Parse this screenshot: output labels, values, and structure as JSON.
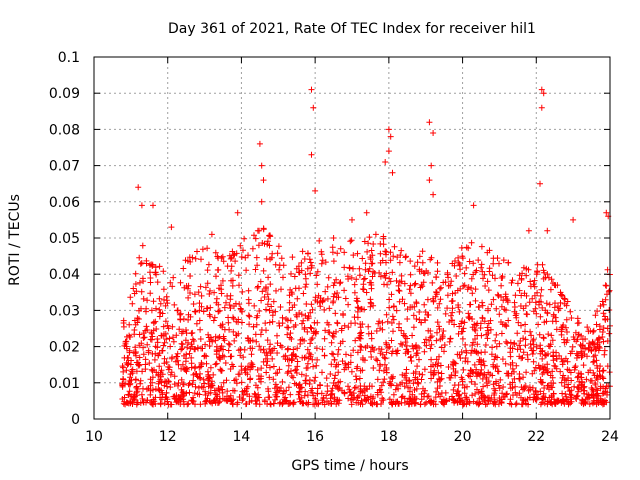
{
  "chart_data": {
    "type": "scatter",
    "title": "Day 361 of 2021, Rate Of TEC Index for receiver hil1",
    "xlabel": "GPS time / hours",
    "ylabel": "ROTI / TECUs",
    "xlim": [
      10,
      24
    ],
    "ylim": [
      0,
      0.1
    ],
    "xticks": [
      10,
      12,
      14,
      16,
      18,
      20,
      22,
      24
    ],
    "xtick_labels": [
      "10",
      "12",
      "14",
      "16",
      "18",
      "20",
      "22",
      "24"
    ],
    "yticks": [
      0,
      0.01,
      0.02,
      0.03,
      0.04,
      0.05,
      0.06,
      0.07,
      0.08,
      0.09,
      0.1
    ],
    "ytick_labels": [
      "0",
      "0.01",
      "0.02",
      "0.03",
      "0.04",
      "0.05",
      "0.06",
      "0.07",
      "0.08",
      "0.09",
      "0.1"
    ],
    "grid": true,
    "marker": "+",
    "color": "#ff0000",
    "data_x_range": [
      10.75,
      24.0
    ],
    "envelope": {
      "description": "approximate upper envelope of the dense point cloud (hour, ROTI)",
      "points": [
        [
          10.75,
          0.025
        ],
        [
          11.0,
          0.035
        ],
        [
          11.25,
          0.05
        ],
        [
          11.5,
          0.045
        ],
        [
          12.0,
          0.04
        ],
        [
          12.5,
          0.045
        ],
        [
          13.0,
          0.048
        ],
        [
          13.5,
          0.045
        ],
        [
          14.0,
          0.05
        ],
        [
          14.5,
          0.055
        ],
        [
          15.0,
          0.048
        ],
        [
          15.5,
          0.045
        ],
        [
          16.0,
          0.05
        ],
        [
          16.5,
          0.048
        ],
        [
          17.0,
          0.05
        ],
        [
          17.5,
          0.052
        ],
        [
          18.0,
          0.05
        ],
        [
          18.5,
          0.045
        ],
        [
          19.0,
          0.048
        ],
        [
          19.5,
          0.042
        ],
        [
          20.0,
          0.048
        ],
        [
          20.5,
          0.05
        ],
        [
          21.0,
          0.045
        ],
        [
          21.5,
          0.042
        ],
        [
          22.0,
          0.045
        ],
        [
          22.5,
          0.04
        ],
        [
          23.0,
          0.03
        ],
        [
          23.5,
          0.025
        ],
        [
          24.0,
          0.045
        ]
      ]
    },
    "outliers": [
      [
        11.2,
        0.064
      ],
      [
        11.3,
        0.059
      ],
      [
        11.6,
        0.059
      ],
      [
        12.1,
        0.053
      ],
      [
        13.2,
        0.051
      ],
      [
        13.9,
        0.057
      ],
      [
        14.5,
        0.076
      ],
      [
        14.55,
        0.07
      ],
      [
        14.6,
        0.066
      ],
      [
        14.55,
        0.06
      ],
      [
        15.9,
        0.091
      ],
      [
        15.95,
        0.086
      ],
      [
        15.9,
        0.073
      ],
      [
        16.0,
        0.063
      ],
      [
        16.5,
        0.05
      ],
      [
        17.0,
        0.055
      ],
      [
        17.4,
        0.057
      ],
      [
        17.9,
        0.071
      ],
      [
        18.0,
        0.08
      ],
      [
        18.05,
        0.078
      ],
      [
        18.0,
        0.074
      ],
      [
        18.1,
        0.068
      ],
      [
        19.1,
        0.082
      ],
      [
        19.2,
        0.079
      ],
      [
        19.15,
        0.07
      ],
      [
        19.1,
        0.066
      ],
      [
        19.2,
        0.062
      ],
      [
        20.3,
        0.059
      ],
      [
        21.8,
        0.052
      ],
      [
        22.15,
        0.091
      ],
      [
        22.2,
        0.09
      ],
      [
        22.15,
        0.086
      ],
      [
        22.1,
        0.065
      ],
      [
        22.3,
        0.052
      ],
      [
        23.0,
        0.055
      ],
      [
        23.9,
        0.057
      ],
      [
        23.95,
        0.056
      ]
    ]
  }
}
